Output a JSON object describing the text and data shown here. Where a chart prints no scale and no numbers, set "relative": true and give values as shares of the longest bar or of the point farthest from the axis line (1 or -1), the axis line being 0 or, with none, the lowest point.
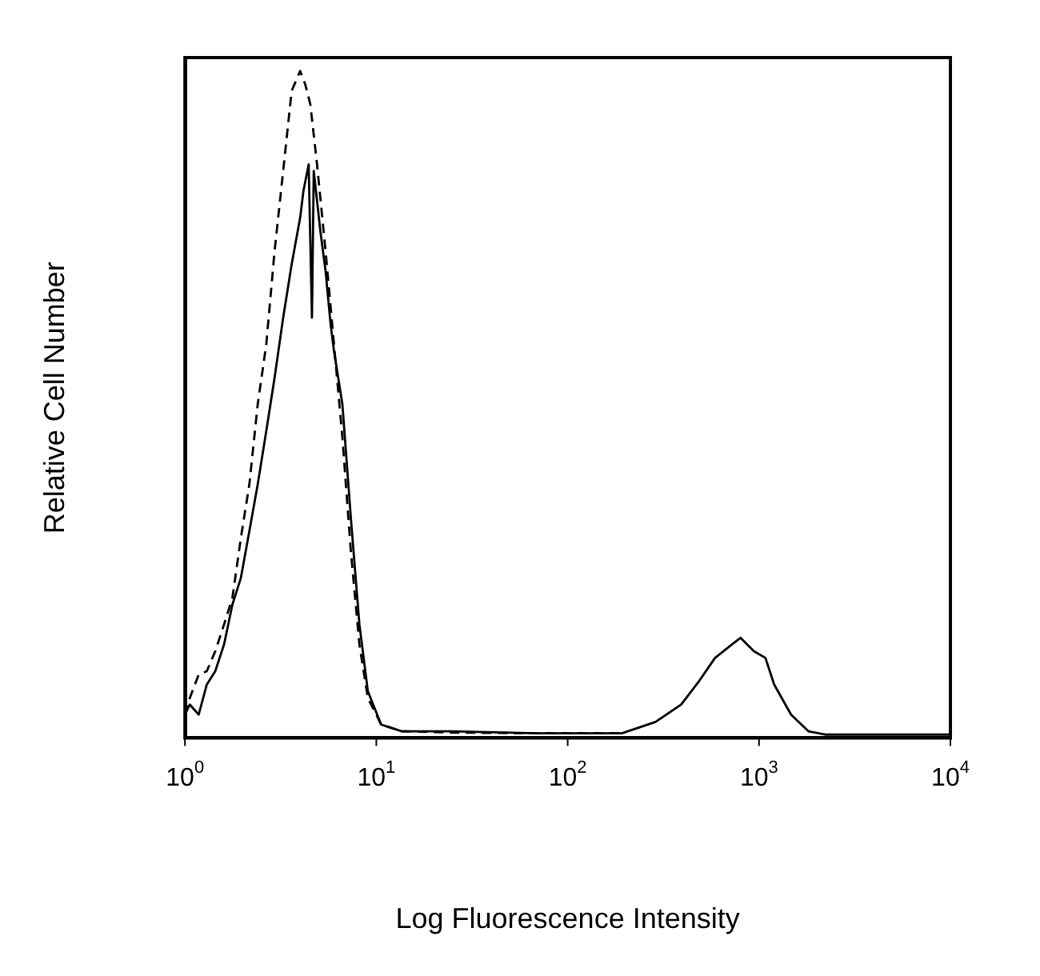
{
  "chart_data": {
    "type": "line",
    "relative": true,
    "log": "x",
    "xlabel": "Log Fluorescence Intensity",
    "ylabel": "Relative Cell Number",
    "xlim": [
      1,
      10000
    ],
    "xticks": [
      {
        "value": 1,
        "label": "10$^{0}$"
      },
      {
        "value": 10,
        "label": "10$^{1}$"
      },
      {
        "value": 100,
        "label": "10$^{2}$"
      },
      {
        "value": 1000,
        "label": "10$^{3}$"
      },
      {
        "value": 10000,
        "label": "10$^{4}$"
      }
    ],
    "grid": false,
    "legend": false,
    "marker": "none",
    "series": [
      {
        "color": "#000000",
        "line_style": "solid",
        "x": [
          1.0,
          1.06,
          1.18,
          1.3,
          1.44,
          1.6,
          1.77,
          1.96,
          2.17,
          2.4,
          2.66,
          2.94,
          3.26,
          3.61,
          4.0,
          4.16,
          4.43,
          4.61,
          4.71,
          5.1,
          5.43,
          5.77,
          6.01,
          6.65,
          7.36,
          8.16,
          9.03,
          10.6,
          13.6,
          25,
          69,
          192,
          288,
          392,
          480,
          589,
          721,
          800,
          940,
          1080,
          1200,
          1470,
          1810,
          2210,
          10000
        ],
        "values": [
          0.035,
          0.05,
          0.035,
          0.08,
          0.1,
          0.14,
          0.2,
          0.24,
          0.31,
          0.38,
          0.46,
          0.54,
          0.63,
          0.71,
          0.78,
          0.82,
          0.86,
          0.63,
          0.85,
          0.76,
          0.7,
          0.62,
          0.58,
          0.5,
          0.33,
          0.17,
          0.07,
          0.02,
          0.01,
          0.01,
          0.007,
          0.007,
          0.024,
          0.05,
          0.083,
          0.12,
          0.14,
          0.15,
          0.13,
          0.12,
          0.08,
          0.035,
          0.01,
          0.005,
          0.005
        ]
      },
      {
        "color": "#000000",
        "line_style": "dashed",
        "x": [
          1.0,
          1.06,
          1.18,
          1.3,
          1.44,
          1.6,
          1.77,
          1.96,
          2.17,
          2.4,
          2.66,
          2.94,
          3.26,
          3.61,
          4.0,
          4.25,
          4.52,
          4.9,
          5.43,
          6.01,
          6.65,
          7.36,
          8.16,
          9.03,
          10.6,
          13.6,
          25,
          69,
          192
        ],
        "values": [
          0.035,
          0.06,
          0.095,
          0.1,
          0.13,
          0.17,
          0.21,
          0.3,
          0.38,
          0.5,
          0.59,
          0.73,
          0.85,
          0.97,
          1,
          0.98,
          0.95,
          0.86,
          0.73,
          0.59,
          0.45,
          0.28,
          0.14,
          0.06,
          0.02,
          0.01,
          0.008,
          0.007,
          0.007
        ]
      }
    ]
  }
}
